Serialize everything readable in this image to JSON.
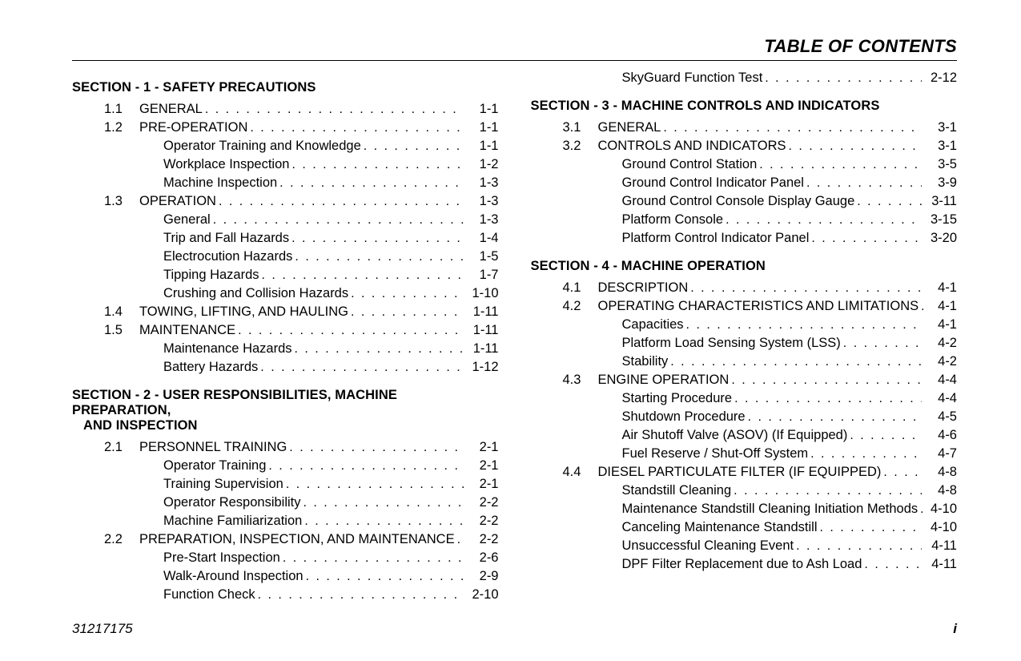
{
  "header": {
    "title": "TABLE OF CONTENTS"
  },
  "footer": {
    "doc_id": "31217175",
    "page": "i"
  },
  "columns": [
    {
      "blocks": [
        {
          "type": "section",
          "title": "SECTION - 1 - SAFETY PRECAUTIONS",
          "entries": [
            {
              "level": 1,
              "num": "1.1",
              "label": "GENERAL",
              "page": "1-1"
            },
            {
              "level": 1,
              "num": "1.2",
              "label": "PRE-OPERATION",
              "page": "1-1"
            },
            {
              "level": 2,
              "num": "",
              "label": "Operator Training and Knowledge",
              "page": "1-1"
            },
            {
              "level": 2,
              "num": "",
              "label": "Workplace Inspection",
              "page": "1-2"
            },
            {
              "level": 2,
              "num": "",
              "label": "Machine Inspection",
              "page": "1-3"
            },
            {
              "level": 1,
              "num": "1.3",
              "label": "OPERATION",
              "page": "1-3"
            },
            {
              "level": 2,
              "num": "",
              "label": "General",
              "page": "1-3"
            },
            {
              "level": 2,
              "num": "",
              "label": "Trip and Fall Hazards",
              "page": "1-4"
            },
            {
              "level": 2,
              "num": "",
              "label": "Electrocution Hazards",
              "page": "1-5"
            },
            {
              "level": 2,
              "num": "",
              "label": "Tipping Hazards",
              "page": "1-7"
            },
            {
              "level": 2,
              "num": "",
              "label": "Crushing and Collision Hazards",
              "page": "1-10"
            },
            {
              "level": 1,
              "num": "1.4",
              "label": "TOWING, LIFTING, AND HAULING",
              "page": "1-11"
            },
            {
              "level": 1,
              "num": "1.5",
              "label": "MAINTENANCE",
              "page": "1-11"
            },
            {
              "level": 2,
              "num": "",
              "label": "Maintenance Hazards",
              "page": "1-11"
            },
            {
              "level": 2,
              "num": "",
              "label": "Battery Hazards",
              "page": "1-12"
            }
          ]
        },
        {
          "type": "section",
          "title": "SECTION - 2 - USER RESPONSIBILITIES, MACHINE PREPARATION,",
          "title_cont": "AND INSPECTION",
          "entries": [
            {
              "level": 1,
              "num": "2.1",
              "label": "PERSONNEL TRAINING",
              "page": "2-1"
            },
            {
              "level": 2,
              "num": "",
              "label": "Operator Training",
              "page": "2-1"
            },
            {
              "level": 2,
              "num": "",
              "label": "Training Supervision",
              "page": "2-1"
            },
            {
              "level": 2,
              "num": "",
              "label": "Operator Responsibility",
              "page": "2-2"
            },
            {
              "level": 2,
              "num": "",
              "label": "Machine Familiarization",
              "page": "2-2"
            },
            {
              "level": 1,
              "num": "2.2",
              "label": "PREPARATION, INSPECTION, AND MAINTENANCE",
              "page": "2-2"
            },
            {
              "level": 2,
              "num": "",
              "label": "Pre-Start Inspection",
              "page": "2-6"
            },
            {
              "level": 2,
              "num": "",
              "label": "Walk-Around Inspection",
              "page": "2-9"
            },
            {
              "level": 2,
              "num": "",
              "label": "Function Check",
              "page": "2-10"
            }
          ]
        }
      ]
    },
    {
      "blocks": [
        {
          "type": "entries_only",
          "entries": [
            {
              "level": 2,
              "num": "",
              "label": "SkyGuard Function Test",
              "page": "2-12"
            }
          ]
        },
        {
          "type": "section",
          "title": "SECTION - 3 - MACHINE CONTROLS AND INDICATORS",
          "entries": [
            {
              "level": 1,
              "num": "3.1",
              "label": "GENERAL",
              "page": "3-1"
            },
            {
              "level": 1,
              "num": "3.2",
              "label": "CONTROLS AND INDICATORS",
              "page": "3-1"
            },
            {
              "level": 2,
              "num": "",
              "label": "Ground Control Station",
              "page": "3-5"
            },
            {
              "level": 2,
              "num": "",
              "label": "Ground Control Indicator Panel",
              "page": "3-9"
            },
            {
              "level": 2,
              "num": "",
              "label": "Ground Control Console Display Gauge",
              "page": "3-11"
            },
            {
              "level": 2,
              "num": "",
              "label": "Platform Console",
              "page": "3-15"
            },
            {
              "level": 2,
              "num": "",
              "label": "Platform Control Indicator Panel",
              "page": "3-20"
            }
          ]
        },
        {
          "type": "section",
          "title": "SECTION - 4 - MACHINE OPERATION",
          "entries": [
            {
              "level": 1,
              "num": "4.1",
              "label": "DESCRIPTION",
              "page": "4-1"
            },
            {
              "level": 1,
              "num": "4.2",
              "label": "OPERATING CHARACTERISTICS AND LIMITATIONS",
              "page": "4-1"
            },
            {
              "level": 2,
              "num": "",
              "label": "Capacities",
              "page": "4-1"
            },
            {
              "level": 2,
              "num": "",
              "label": "Platform Load Sensing System (LSS)",
              "page": "4-2"
            },
            {
              "level": 2,
              "num": "",
              "label": "Stability",
              "page": "4-2"
            },
            {
              "level": 1,
              "num": "4.3",
              "label": "ENGINE OPERATION",
              "page": "4-4"
            },
            {
              "level": 2,
              "num": "",
              "label": "Starting Procedure",
              "page": "4-4"
            },
            {
              "level": 2,
              "num": "",
              "label": "Shutdown Procedure",
              "page": "4-5"
            },
            {
              "level": 2,
              "num": "",
              "label": "Air Shutoff Valve (ASOV) (If Equipped)",
              "page": "4-6"
            },
            {
              "level": 2,
              "num": "",
              "label": "Fuel Reserve / Shut-Off System",
              "page": "4-7"
            },
            {
              "level": 1,
              "num": "4.4",
              "label": "DIESEL PARTICULATE FILTER (IF EQUIPPED)",
              "page": "4-8"
            },
            {
              "level": 2,
              "num": "",
              "label": "Standstill Cleaning",
              "page": "4-8"
            },
            {
              "level": 2,
              "num": "",
              "label": "Maintenance Standstill Cleaning Initiation Methods",
              "page": "4-10"
            },
            {
              "level": 2,
              "num": "",
              "label": "Canceling Maintenance Standstill",
              "page": "4-10"
            },
            {
              "level": 2,
              "num": "",
              "label": "Unsuccessful Cleaning Event",
              "page": "4-11"
            },
            {
              "level": 2,
              "num": "",
              "label": "DPF Filter Replacement due to Ash Load",
              "page": "4-11"
            }
          ]
        }
      ]
    }
  ]
}
